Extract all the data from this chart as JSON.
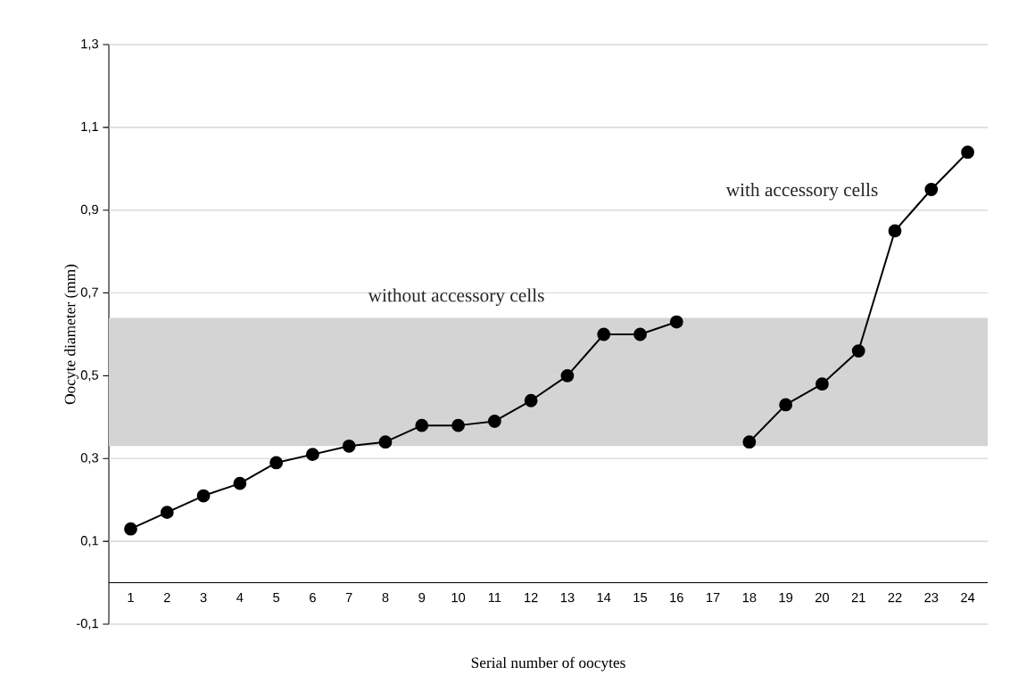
{
  "chart_data": {
    "type": "line",
    "xlabel": "Serial number of oocytes",
    "ylabel": "Oocyte diameter (mm)",
    "categories": [
      "1",
      "2",
      "3",
      "4",
      "5",
      "6",
      "7",
      "8",
      "9",
      "10",
      "11",
      "12",
      "13",
      "14",
      "15",
      "16",
      "17",
      "18",
      "19",
      "20",
      "21",
      "22",
      "23",
      "24"
    ],
    "series": [
      {
        "color": "#000000",
        "values": [
          0.13,
          0.17,
          0.21,
          0.24,
          0.29,
          0.31,
          0.33,
          0.34,
          0.38,
          0.38,
          0.39,
          0.44,
          0.5,
          0.6,
          0.6,
          0.63,
          null,
          0.34,
          0.43,
          0.48,
          0.56,
          0.85,
          0.95,
          1.04
        ]
      }
    ],
    "ylim": [
      -0.1,
      1.3
    ],
    "yticks": [
      {
        "value": -0.1,
        "label": "-0,1"
      },
      {
        "value": 0.1,
        "label": "0,1"
      },
      {
        "value": 0.3,
        "label": "0,3"
      },
      {
        "value": 0.5,
        "label": "0,5"
      },
      {
        "value": 0.7,
        "label": "0,7"
      },
      {
        "value": 0.9,
        "label": "0,9"
      },
      {
        "value": 1.1,
        "label": "1,1"
      },
      {
        "value": 1.3,
        "label": "1,3"
      }
    ],
    "grid": "y",
    "marker": "circle",
    "line_style": "solid",
    "bands": [
      {
        "axis": "y",
        "from": 0.33,
        "to": 0.64,
        "color": "#d4d4d4"
      }
    ],
    "annotations": [
      "without accessory cells",
      "with accessory cells"
    ]
  }
}
